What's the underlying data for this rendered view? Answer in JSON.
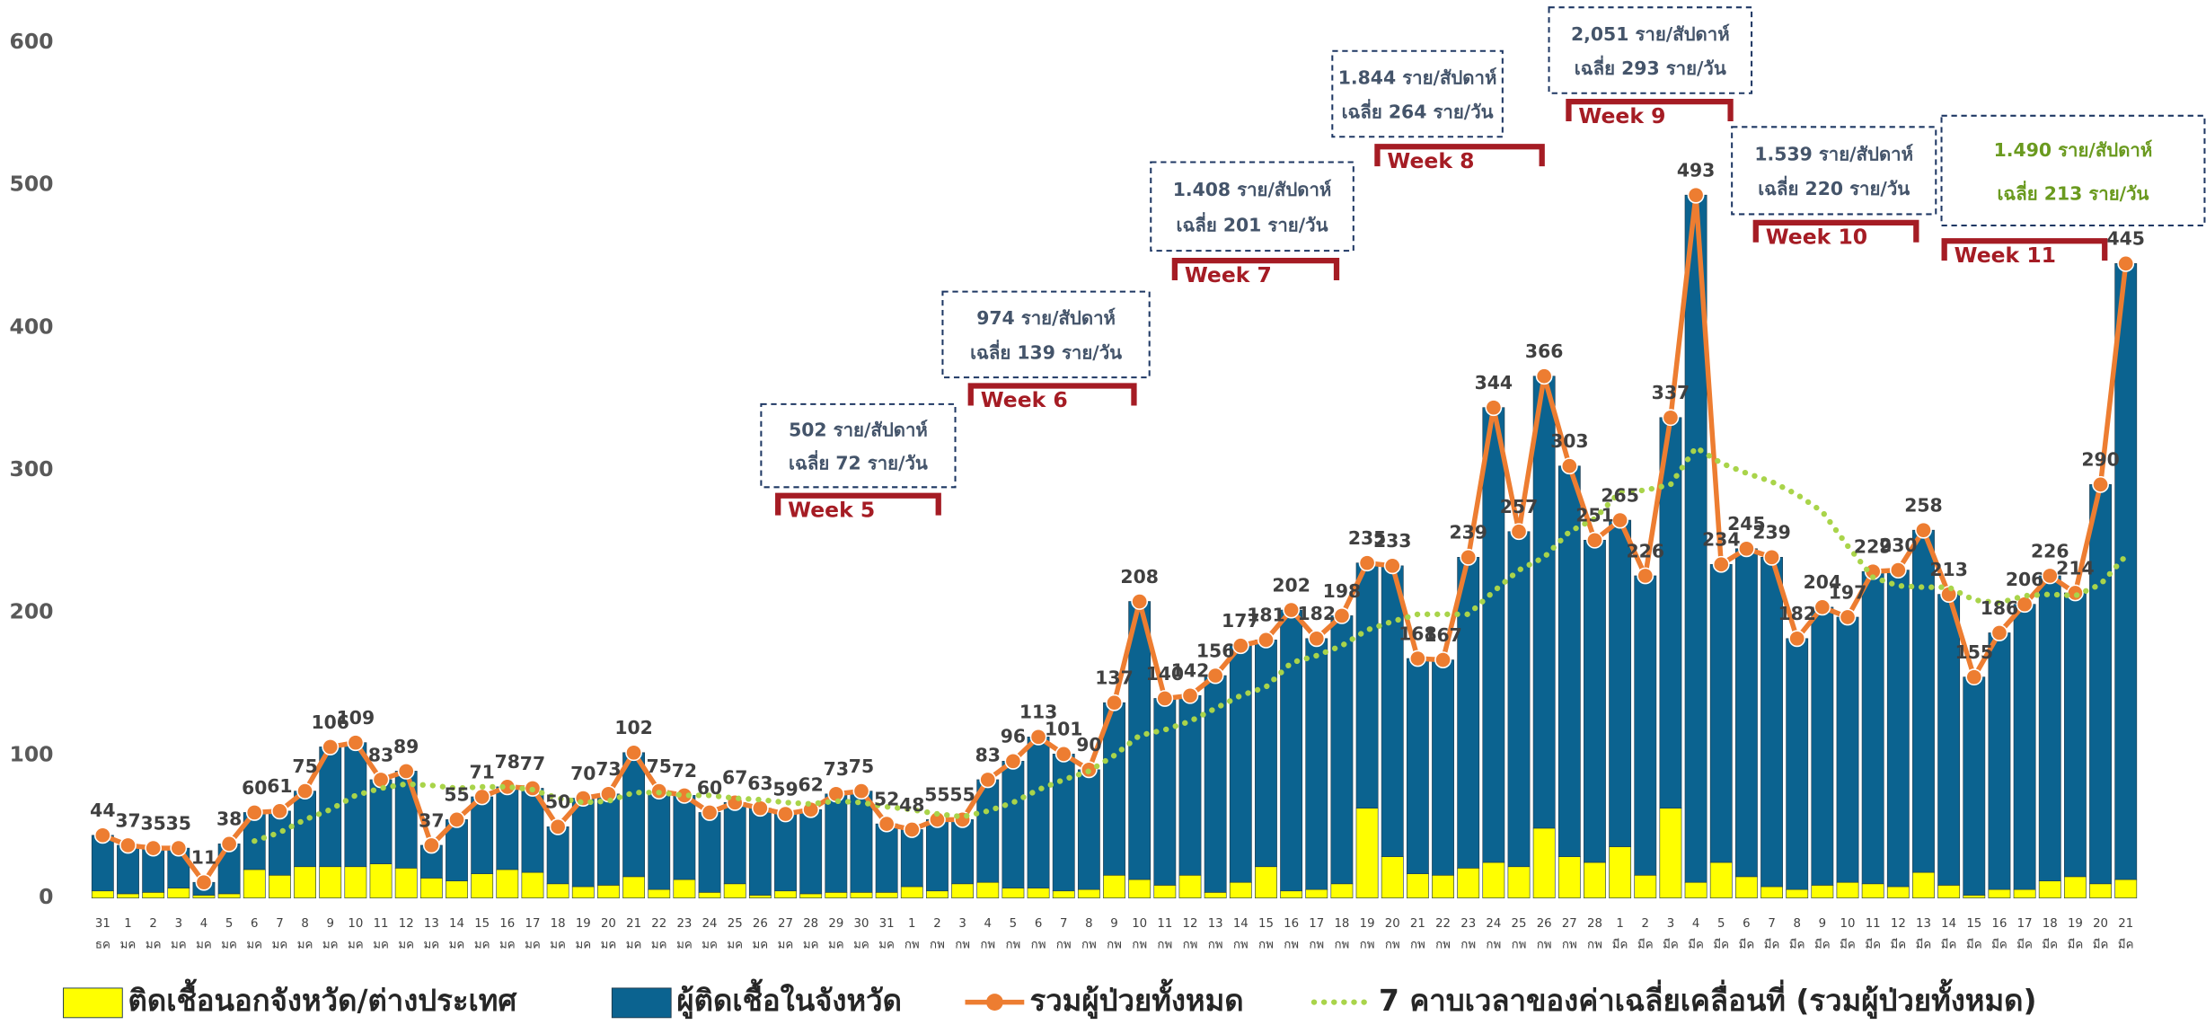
{
  "chart_data": {
    "type": "bar",
    "stacked": true,
    "categories": [
      "31",
      "1",
      "2",
      "3",
      "4",
      "5",
      "6",
      "7",
      "8",
      "9",
      "10",
      "11",
      "12",
      "13",
      "14",
      "15",
      "16",
      "17",
      "18",
      "19",
      "20",
      "21",
      "22",
      "23",
      "24",
      "25",
      "26",
      "27",
      "28",
      "29",
      "30",
      "31",
      "1",
      "2",
      "3",
      "4",
      "5",
      "6",
      "7",
      "8",
      "9",
      "10",
      "11",
      "12",
      "13",
      "14",
      "15",
      "16",
      "17",
      "18",
      "19",
      "20",
      "21",
      "22",
      "23",
      "24",
      "25",
      "26",
      "27",
      "28",
      "1",
      "2",
      "3",
      "4",
      "5",
      "6",
      "7",
      "8",
      "9",
      "10",
      "11",
      "12",
      "13",
      "14",
      "15",
      "16",
      "17",
      "18",
      "19",
      "20",
      "21"
    ],
    "category_months": [
      "ธค",
      "มค",
      "มค",
      "มค",
      "มค",
      "มค",
      "มค",
      "มค",
      "มค",
      "มค",
      "มค",
      "มค",
      "มค",
      "มค",
      "มค",
      "มค",
      "มค",
      "มค",
      "มค",
      "มค",
      "มค",
      "มค",
      "มค",
      "มค",
      "มค",
      "มค",
      "มค",
      "มค",
      "มค",
      "มค",
      "มค",
      "มค",
      "กพ",
      "กพ",
      "กพ",
      "กพ",
      "กพ",
      "กพ",
      "กพ",
      "กพ",
      "กพ",
      "กพ",
      "กพ",
      "กพ",
      "กพ",
      "กพ",
      "กพ",
      "กพ",
      "กพ",
      "กพ",
      "กพ",
      "กพ",
      "กพ",
      "กพ",
      "กพ",
      "กพ",
      "กพ",
      "กพ",
      "กพ",
      "กพ",
      "มีค",
      "มีค",
      "มีค",
      "มีค",
      "มีค",
      "มีค",
      "มีค",
      "มีค",
      "มีค",
      "มีค",
      "มีค",
      "มีค",
      "มีค",
      "มีค",
      "มีค",
      "มีค",
      "มีค",
      "มีค",
      "มีค",
      "มีค",
      "มีค"
    ],
    "series": [
      {
        "name": "ติดเชื้อนอกจังหวัด/ต่างประเทศ",
        "kind": "bar",
        "color": "#ffff00",
        "values": [
          5,
          3,
          4,
          7,
          2,
          3,
          20,
          16,
          22,
          22,
          22,
          24,
          21,
          14,
          12,
          17,
          20,
          18,
          10,
          8,
          9,
          15,
          6,
          13,
          4,
          10,
          2,
          5,
          3,
          4,
          4,
          4,
          8,
          5,
          10,
          11,
          7,
          7,
          5,
          6,
          16,
          13,
          9,
          16,
          4,
          11,
          22,
          5,
          6,
          10,
          63,
          29,
          17,
          16,
          21,
          25,
          22,
          49,
          29,
          25,
          36,
          16,
          63,
          11,
          25,
          15,
          8,
          6,
          9,
          11,
          10,
          8,
          18,
          9,
          2,
          6,
          6,
          12,
          15,
          10,
          13
        ]
      },
      {
        "name": "ผู้ติดเชื้อในจังหวัด",
        "kind": "bar",
        "color": "#0b6390",
        "values": [
          39,
          34,
          31,
          28,
          9,
          35,
          40,
          45,
          53,
          84,
          87,
          59,
          68,
          23,
          43,
          54,
          58,
          59,
          40,
          62,
          64,
          87,
          69,
          59,
          56,
          57,
          61,
          54,
          59,
          69,
          71,
          48,
          40,
          50,
          45,
          72,
          89,
          106,
          96,
          84,
          121,
          195,
          131,
          126,
          152,
          166,
          159,
          197,
          176,
          188,
          172,
          204,
          151,
          151,
          218,
          319,
          235,
          317,
          274,
          226,
          229,
          210,
          274,
          482,
          209,
          230,
          231,
          176,
          195,
          186,
          219,
          222,
          240,
          204,
          153,
          180,
          200,
          214,
          199,
          280,
          432
        ]
      },
      {
        "name": "รวมผู้ป่วยทั้งหมด",
        "kind": "line",
        "color": "#ed7d31",
        "values": [
          44,
          37,
          35,
          35,
          11,
          38,
          60,
          61,
          75,
          106,
          109,
          83,
          89,
          37,
          55,
          71,
          78,
          77,
          50,
          70,
          73,
          102,
          75,
          72,
          60,
          67,
          63,
          59,
          62,
          73,
          75,
          52,
          48,
          55,
          55,
          83,
          96,
          113,
          101,
          90,
          137,
          208,
          140,
          142,
          156,
          177,
          181,
          202,
          182,
          198,
          235,
          233,
          168,
          167,
          239,
          344,
          257,
          366,
          303,
          251,
          265,
          226,
          337,
          493,
          234,
          245,
          239,
          182,
          204,
          197,
          229,
          230,
          258,
          213,
          155,
          186,
          206,
          226,
          214,
          290,
          445
        ]
      },
      {
        "name": "7 คาบเวลาของค่าเฉลี่ยเคลื่อนที่ (รวมผู้ป่วยทั้งหมด)",
        "kind": "dotted",
        "color": "#a9d44a",
        "values": [
          null,
          null,
          null,
          null,
          null,
          null,
          40,
          46,
          55,
          62,
          72,
          77,
          80,
          79,
          77,
          78,
          78,
          76,
          70,
          67,
          68,
          74,
          74,
          72,
          72,
          70,
          69,
          67,
          66,
          68,
          67,
          64,
          62,
          59,
          57,
          61,
          67,
          76,
          83,
          89,
          100,
          114,
          118,
          124,
          133,
          142,
          148,
          165,
          170,
          177,
          188,
          194,
          199,
          199,
          199,
          215,
          230,
          239,
          257,
          266,
          285,
          286,
          290,
          316,
          305,
          298,
          292,
          283,
          271,
          247,
          225,
          219,
          218,
          218,
          209,
          207,
          212,
          213,
          212,
          220,
          240
        ]
      }
    ],
    "ylim": [
      0,
      600
    ],
    "yticks": [
      0,
      100,
      200,
      300,
      400,
      500,
      600
    ],
    "grid": false,
    "annotations": [
      {
        "lines": [
          "502 ราย/สัปดาห์",
          "เฉลี่ย 72 ราย/วัน"
        ],
        "week": "Week 5",
        "color": "#44546a"
      },
      {
        "lines": [
          "974 ราย/สัปดาห์",
          "เฉลี่ย 139 ราย/วัน"
        ],
        "week": "Week 6",
        "color": "#44546a"
      },
      {
        "lines": [
          "1.408 ราย/สัปดาห์",
          "เฉลี่ย 201 ราย/วัน"
        ],
        "week": "Week 7",
        "color": "#44546a"
      },
      {
        "lines": [
          "1.844 ราย/สัปดาห์",
          "เฉลี่ย 264 ราย/วัน"
        ],
        "week": "Week 8",
        "color": "#44546a"
      },
      {
        "lines": [
          "2,051 ราย/สัปดาห์",
          "เฉลี่ย 293 ราย/วัน"
        ],
        "week": "Week 9",
        "color": "#44546a"
      },
      {
        "lines": [
          "1.539 ราย/สัปดาห์",
          "เฉลี่ย 220 ราย/วัน"
        ],
        "week": "Week 10",
        "color": "#44546a"
      },
      {
        "lines": [
          "1.490 ราย/สัปดาห์",
          "เฉลี่ย 213 ราย/วัน"
        ],
        "week": "Week 11",
        "color": "#6a9a1f"
      }
    ]
  }
}
